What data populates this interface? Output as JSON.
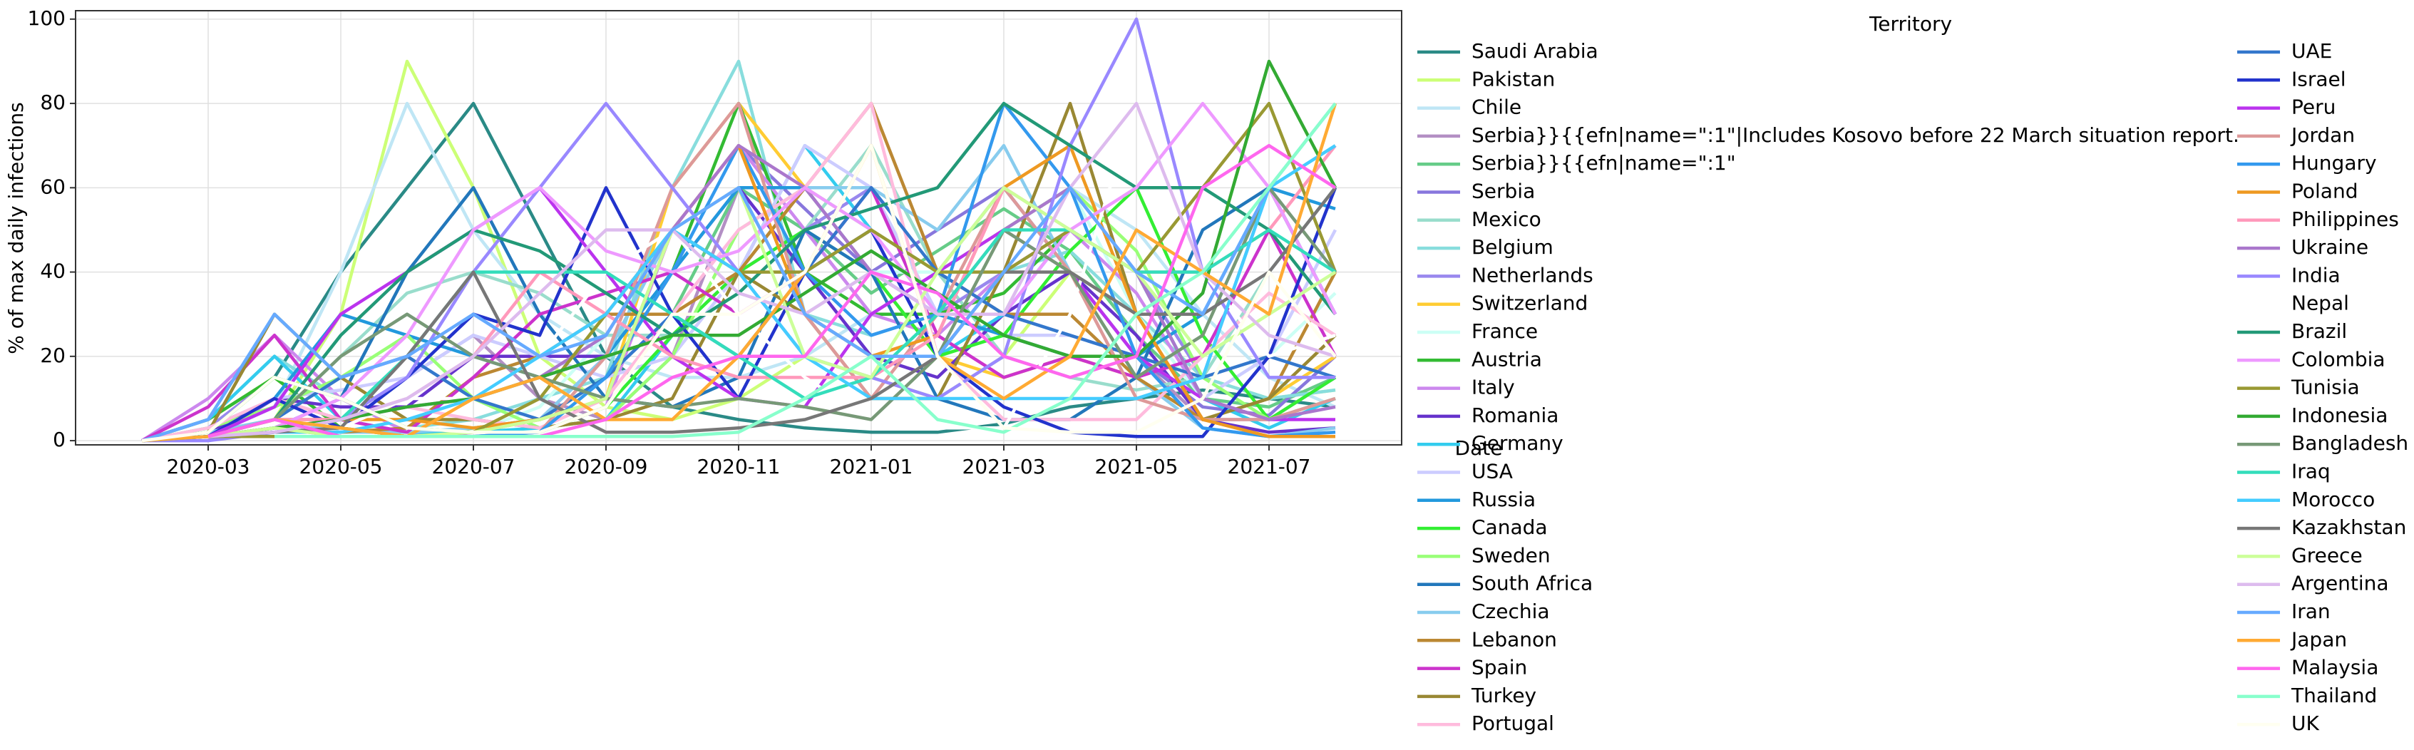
{
  "chart_data": {
    "type": "line",
    "xlabel": "Date",
    "ylabel": "% of max daily infections",
    "legend_title": "Territory",
    "x": [
      "2020-01",
      "2020-02",
      "2020-03",
      "2020-04",
      "2020-05",
      "2020-06",
      "2020-07",
      "2020-08",
      "2020-09",
      "2020-10",
      "2020-11",
      "2020-12",
      "2021-01",
      "2021-02",
      "2021-03",
      "2021-04",
      "2021-05",
      "2021-06",
      "2021-07",
      "2021-08"
    ],
    "xlim": [
      "2020-01",
      "2021-09"
    ],
    "xticks": [
      "2020-03",
      "2020-05",
      "2020-07",
      "2020-09",
      "2020-11",
      "2021-01",
      "2021-03",
      "2021-05",
      "2021-07"
    ],
    "ylim": [
      -1,
      102
    ],
    "yticks": [
      0,
      20,
      40,
      60,
      80,
      100
    ],
    "grid": true,
    "series": [
      {
        "name": "Saudi Arabia",
        "color": "#2a8a86",
        "values": [
          null,
          0,
          2,
          15,
          40,
          60,
          80,
          50,
          20,
          8,
          5,
          3,
          2,
          2,
          4,
          8,
          10,
          12,
          10,
          8
        ]
      },
      {
        "name": "Pakistan",
        "color": "#ccff77",
        "values": [
          null,
          0,
          1,
          5,
          30,
          90,
          60,
          20,
          8,
          5,
          10,
          20,
          15,
          10,
          20,
          40,
          30,
          15,
          10,
          12
        ]
      },
      {
        "name": "Chile",
        "color": "#bfe6f5",
        "values": [
          null,
          null,
          1,
          8,
          40,
          80,
          50,
          30,
          20,
          15,
          15,
          20,
          30,
          40,
          50,
          60,
          50,
          30,
          15,
          8
        ]
      },
      {
        "name": "Serbia}}{{efn|name=\":1\"|Includes Kosovo before 22 March situation report.",
        "color": "#b38fc4",
        "values": [
          null,
          null,
          0,
          10,
          5,
          15,
          25,
          10,
          5,
          20,
          60,
          50,
          30,
          40,
          60,
          40,
          20,
          5,
          5,
          10
        ]
      },
      {
        "name": "Serbia}}{{efn|name=\":1\"",
        "color": "#66cc88",
        "values": [
          null,
          null,
          null,
          null,
          null,
          null,
          null,
          null,
          null,
          30,
          60,
          50,
          35,
          45,
          55,
          45,
          25,
          10,
          8,
          15
        ]
      },
      {
        "name": "Serbia",
        "color": "#8877dd",
        "values": [
          null,
          null,
          null,
          null,
          null,
          null,
          null,
          null,
          null,
          null,
          70,
          55,
          40,
          50,
          60,
          40,
          20,
          8,
          6,
          20
        ]
      },
      {
        "name": "Mexico",
        "color": "#99ddcc",
        "values": [
          null,
          null,
          1,
          5,
          20,
          35,
          40,
          35,
          25,
          25,
          35,
          50,
          70,
          40,
          20,
          15,
          12,
          15,
          40,
          60
        ]
      },
      {
        "name": "Belgium",
        "color": "#88dddd",
        "values": [
          null,
          null,
          5,
          20,
          10,
          3,
          5,
          10,
          15,
          60,
          90,
          30,
          25,
          30,
          40,
          45,
          30,
          15,
          10,
          12
        ]
      },
      {
        "name": "Netherlands",
        "color": "#9988ee",
        "values": [
          null,
          0,
          3,
          15,
          10,
          3,
          2,
          5,
          20,
          50,
          40,
          50,
          60,
          30,
          40,
          50,
          40,
          15,
          60,
          30
        ]
      },
      {
        "name": "Switzerland",
        "color": "#ffcc33",
        "values": [
          null,
          0,
          5,
          15,
          3,
          1,
          2,
          5,
          10,
          60,
          80,
          60,
          40,
          20,
          15,
          20,
          15,
          5,
          10,
          20
        ]
      },
      {
        "name": "France",
        "color": "#ccfff5",
        "values": [
          null,
          0,
          3,
          10,
          3,
          1,
          2,
          8,
          25,
          50,
          60,
          30,
          40,
          40,
          50,
          60,
          30,
          10,
          20,
          35
        ]
      },
      {
        "name": "Austria",
        "color": "#33bb33",
        "values": [
          null,
          0,
          5,
          15,
          3,
          1,
          3,
          5,
          15,
          40,
          80,
          40,
          30,
          30,
          35,
          50,
          40,
          10,
          5,
          15
        ]
      },
      {
        "name": "Italy",
        "color": "#cc88ee",
        "values": [
          null,
          0,
          10,
          25,
          10,
          2,
          1,
          2,
          8,
          50,
          70,
          50,
          30,
          25,
          40,
          50,
          35,
          10,
          5,
          15
        ]
      },
      {
        "name": "Romania",
        "color": "#6633cc",
        "values": [
          null,
          null,
          2,
          10,
          8,
          8,
          20,
          20,
          20,
          40,
          60,
          40,
          20,
          15,
          30,
          40,
          25,
          5,
          2,
          3
        ]
      },
      {
        "name": "Germany",
        "color": "#33ccee",
        "values": [
          null,
          0,
          5,
          20,
          5,
          2,
          2,
          3,
          5,
          25,
          40,
          70,
          50,
          20,
          30,
          50,
          40,
          10,
          3,
          10
        ]
      },
      {
        "name": "USA",
        "color": "#ccccff",
        "values": [
          null,
          0,
          3,
          10,
          12,
          15,
          25,
          20,
          15,
          20,
          40,
          70,
          60,
          30,
          25,
          25,
          20,
          10,
          20,
          50
        ]
      },
      {
        "name": "Russia",
        "color": "#2299dd",
        "values": [
          null,
          null,
          1,
          10,
          30,
          25,
          20,
          15,
          20,
          40,
          60,
          60,
          40,
          30,
          25,
          20,
          20,
          30,
          60,
          55
        ]
      },
      {
        "name": "Canada",
        "color": "#33ee33",
        "values": [
          null,
          0,
          2,
          15,
          10,
          3,
          2,
          2,
          8,
          25,
          40,
          50,
          40,
          20,
          25,
          45,
          60,
          25,
          5,
          15
        ]
      },
      {
        "name": "Sweden",
        "color": "#99ff77",
        "values": [
          null,
          0,
          3,
          8,
          15,
          25,
          10,
          3,
          5,
          20,
          50,
          60,
          50,
          40,
          50,
          60,
          45,
          15,
          5,
          10
        ]
      },
      {
        "name": "South Africa",
        "color": "#2277bb",
        "values": [
          null,
          null,
          1,
          3,
          10,
          40,
          60,
          30,
          10,
          8,
          15,
          50,
          40,
          10,
          5,
          5,
          15,
          50,
          60,
          30
        ]
      },
      {
        "name": "Czechia",
        "color": "#88ccee",
        "values": [
          null,
          null,
          2,
          5,
          2,
          2,
          3,
          5,
          20,
          50,
          40,
          60,
          60,
          50,
          70,
          40,
          15,
          3,
          1,
          3
        ]
      },
      {
        "name": "Lebanon",
        "color": "#bb8833",
        "values": [
          null,
          null,
          1,
          2,
          2,
          3,
          15,
          20,
          30,
          30,
          40,
          60,
          80,
          40,
          30,
          30,
          15,
          5,
          10,
          40
        ]
      },
      {
        "name": "Spain",
        "color": "#cc33cc",
        "values": [
          null,
          0,
          8,
          25,
          5,
          2,
          15,
          30,
          35,
          40,
          30,
          40,
          60,
          25,
          15,
          20,
          15,
          20,
          50,
          20
        ]
      },
      {
        "name": "Turkey",
        "color": "#998833",
        "values": [
          null,
          null,
          2,
          30,
          15,
          5,
          5,
          3,
          5,
          10,
          40,
          30,
          10,
          10,
          40,
          80,
          30,
          5,
          10,
          25
        ]
      },
      {
        "name": "Portugal",
        "color": "#ffbbdd",
        "values": [
          null,
          0,
          3,
          10,
          5,
          8,
          5,
          3,
          10,
          30,
          50,
          60,
          80,
          20,
          5,
          5,
          5,
          20,
          35,
          25
        ]
      },
      {
        "name": "UAE",
        "color": "#3377cc",
        "values": [
          null,
          0,
          1,
          5,
          15,
          20,
          10,
          5,
          15,
          30,
          20,
          40,
          60,
          40,
          30,
          25,
          20,
          15,
          20,
          15
        ]
      },
      {
        "name": "Israel",
        "color": "#2233cc",
        "values": [
          null,
          0,
          1,
          10,
          3,
          15,
          30,
          25,
          60,
          30,
          10,
          40,
          50,
          20,
          8,
          2,
          1,
          1,
          20,
          60
        ]
      },
      {
        "name": "Peru",
        "color": "#bb33ee",
        "values": [
          null,
          null,
          1,
          8,
          30,
          40,
          50,
          60,
          40,
          20,
          10,
          8,
          30,
          40,
          50,
          40,
          20,
          10,
          5,
          5
        ]
      },
      {
        "name": "Jordan",
        "color": "#dd9999",
        "values": [
          null,
          null,
          null,
          1,
          1,
          1,
          1,
          2,
          20,
          60,
          80,
          30,
          10,
          30,
          60,
          40,
          10,
          5,
          5,
          10
        ]
      },
      {
        "name": "Hungary",
        "color": "#3399ee",
        "values": [
          null,
          null,
          1,
          3,
          1,
          1,
          1,
          2,
          15,
          40,
          70,
          40,
          25,
          30,
          80,
          60,
          20,
          3,
          1,
          2
        ]
      },
      {
        "name": "Poland",
        "color": "#ee9922",
        "values": [
          null,
          null,
          1,
          5,
          5,
          5,
          3,
          5,
          10,
          50,
          70,
          30,
          20,
          25,
          60,
          70,
          30,
          5,
          1,
          1
        ]
      },
      {
        "name": "Philippines",
        "color": "#ff99bb",
        "values": [
          null,
          null,
          1,
          5,
          5,
          10,
          20,
          40,
          30,
          20,
          15,
          15,
          15,
          25,
          60,
          50,
          40,
          40,
          50,
          70
        ]
      },
      {
        "name": "Ukraine",
        "color": "#aa77cc",
        "values": [
          null,
          null,
          1,
          3,
          5,
          8,
          10,
          15,
          25,
          50,
          70,
          60,
          40,
          30,
          50,
          60,
          40,
          10,
          5,
          8
        ]
      },
      {
        "name": "India",
        "color": "#9988ff",
        "values": [
          null,
          0,
          0,
          2,
          5,
          15,
          40,
          60,
          80,
          60,
          40,
          20,
          15,
          10,
          20,
          70,
          100,
          40,
          15,
          15
        ]
      },
      {
        "name": "Nepal",
        "color": "#ffffff",
        "values": [
          null,
          null,
          null,
          1,
          3,
          10,
          10,
          20,
          40,
          50,
          30,
          15,
          5,
          3,
          3,
          30,
          80,
          40,
          20,
          25
        ]
      },
      {
        "name": "Brazil",
        "color": "#229977",
        "values": [
          null,
          0,
          1,
          5,
          25,
          40,
          50,
          45,
          35,
          25,
          35,
          50,
          55,
          60,
          80,
          70,
          60,
          60,
          50,
          30
        ]
      },
      {
        "name": "Colombia",
        "color": "#ee99ff",
        "values": [
          null,
          null,
          1,
          3,
          10,
          25,
          50,
          60,
          45,
          40,
          45,
          60,
          50,
          30,
          30,
          50,
          60,
          80,
          60,
          30
        ]
      },
      {
        "name": "Tunisia",
        "color": "#999933",
        "values": [
          null,
          null,
          1,
          1,
          1,
          1,
          2,
          10,
          30,
          50,
          40,
          40,
          50,
          40,
          40,
          50,
          40,
          60,
          80,
          40
        ]
      },
      {
        "name": "Indonesia",
        "color": "#33aa33",
        "values": [
          null,
          null,
          1,
          3,
          5,
          8,
          10,
          15,
          20,
          25,
          25,
          35,
          45,
          35,
          25,
          20,
          20,
          35,
          90,
          60
        ]
      },
      {
        "name": "Bangladesh",
        "color": "#779977",
        "values": [
          null,
          null,
          1,
          5,
          20,
          30,
          20,
          15,
          10,
          8,
          10,
          8,
          5,
          20,
          50,
          40,
          15,
          25,
          60,
          40
        ]
      },
      {
        "name": "Iraq",
        "color": "#33ddbb",
        "values": [
          null,
          null,
          1,
          2,
          5,
          20,
          40,
          40,
          40,
          30,
          20,
          10,
          15,
          30,
          50,
          50,
          40,
          40,
          50,
          40
        ]
      },
      {
        "name": "Morocco",
        "color": "#44ccff",
        "values": [
          null,
          null,
          1,
          2,
          2,
          5,
          10,
          20,
          30,
          50,
          40,
          20,
          10,
          10,
          10,
          10,
          10,
          15,
          60,
          70
        ]
      },
      {
        "name": "Kazakhstan",
        "color": "#777777",
        "values": [
          null,
          null,
          1,
          2,
          3,
          20,
          40,
          10,
          2,
          2,
          3,
          5,
          10,
          20,
          40,
          40,
          30,
          30,
          40,
          60
        ]
      },
      {
        "name": "Greece",
        "color": "#ccff99",
        "values": [
          null,
          null,
          1,
          3,
          1,
          1,
          2,
          5,
          10,
          50,
          60,
          20,
          15,
          40,
          60,
          50,
          40,
          20,
          30,
          40
        ]
      },
      {
        "name": "Argentina",
        "color": "#ddbbee",
        "values": [
          null,
          null,
          1,
          2,
          5,
          10,
          20,
          35,
          50,
          50,
          35,
          30,
          40,
          30,
          30,
          60,
          80,
          40,
          25,
          20
        ]
      },
      {
        "name": "Iran",
        "color": "#66aaff",
        "values": [
          null,
          0,
          5,
          30,
          15,
          20,
          30,
          20,
          25,
          50,
          60,
          30,
          20,
          20,
          40,
          60,
          40,
          30,
          60,
          80
        ]
      },
      {
        "name": "Japan",
        "color": "#ffaa33",
        "values": [
          null,
          0,
          1,
          5,
          3,
          1,
          10,
          15,
          5,
          5,
          20,
          40,
          70,
          20,
          10,
          20,
          50,
          40,
          30,
          80
        ]
      },
      {
        "name": "Malaysia",
        "color": "#ff66ee",
        "values": [
          null,
          null,
          1,
          5,
          1,
          1,
          1,
          1,
          5,
          15,
          20,
          20,
          40,
          35,
          20,
          15,
          20,
          60,
          70,
          60
        ]
      },
      {
        "name": "Thailand",
        "color": "#88ffcc",
        "values": [
          null,
          null,
          null,
          1,
          1,
          1,
          1,
          1,
          1,
          1,
          2,
          10,
          20,
          5,
          2,
          10,
          30,
          40,
          60,
          80
        ]
      },
      {
        "name": "UK",
        "color": "#fffff0",
        "values": [
          null,
          0,
          2,
          15,
          10,
          3,
          2,
          2,
          8,
          30,
          30,
          40,
          70,
          20,
          3,
          2,
          2,
          10,
          40,
          20
        ]
      }
    ]
  }
}
